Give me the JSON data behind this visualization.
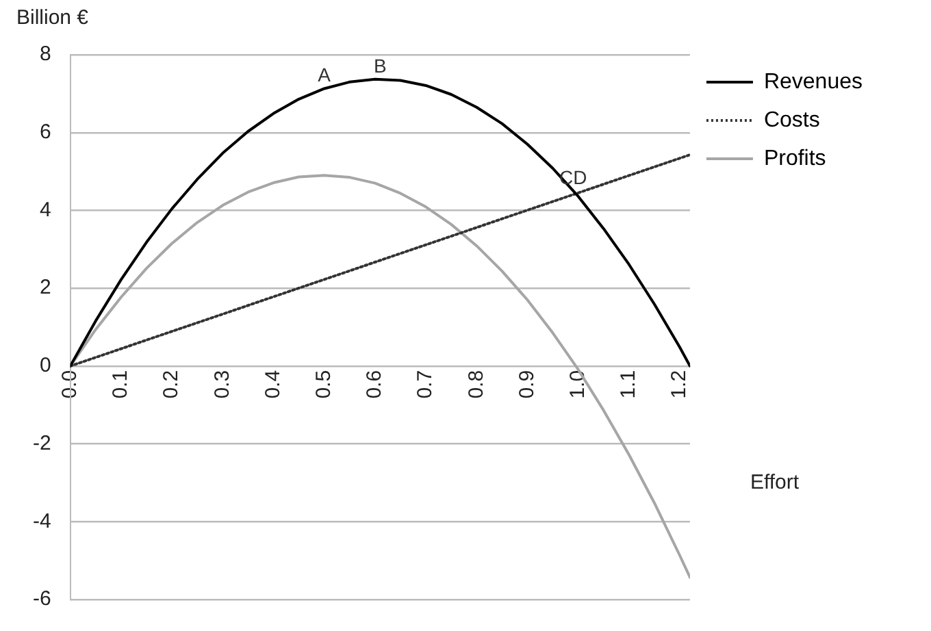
{
  "chart_data": {
    "type": "line",
    "ylabel": "Billion €",
    "xlabel": "Effort",
    "xlim": [
      0,
      1.22
    ],
    "xticks": [
      {
        "value": 0,
        "label": "0.0"
      },
      0.1,
      0.2,
      0.3,
      0.4,
      0.5,
      0.6,
      0.7,
      0.8,
      0.9,
      {
        "value": 1,
        "label": "1.0"
      },
      1.1,
      1.2
    ],
    "ylim": [
      -6,
      8
    ],
    "yticks": [
      -6,
      -4,
      -2,
      0,
      2,
      4,
      6,
      8
    ],
    "grid": "y",
    "legend": "right",
    "marker": "none",
    "series": [
      {
        "name": "Revenues",
        "color": "#000000",
        "line_style": "solid",
        "x": [
          0,
          0.05,
          0.1,
          0.15,
          0.2,
          0.25,
          0.3,
          0.35,
          0.4,
          0.45,
          0.5,
          0.55,
          0.6,
          0.65,
          0.7,
          0.75,
          0.8,
          0.85,
          0.9,
          0.95,
          1,
          1.05,
          1.1,
          1.15,
          1.2,
          1.22
        ],
        "values": [
          0,
          1.16,
          2.22,
          3.18,
          4.04,
          4.8,
          5.47,
          6.03,
          6.49,
          6.86,
          7.13,
          7.3,
          7.37,
          7.34,
          7.21,
          6.98,
          6.65,
          6.23,
          5.7,
          5.08,
          4.36,
          3.53,
          2.61,
          1.59,
          0.48,
          0
        ]
      },
      {
        "name": "Costs",
        "color": "#333333",
        "line_style": "dotted",
        "x": [
          0,
          1.22
        ],
        "values": [
          0,
          5.43
        ]
      },
      {
        "name": "Profits",
        "color": "#a6a6a6",
        "line_style": "solid",
        "x": [
          0,
          0.05,
          0.1,
          0.15,
          0.2,
          0.25,
          0.3,
          0.35,
          0.4,
          0.45,
          0.5,
          0.55,
          0.6,
          0.65,
          0.7,
          0.75,
          0.8,
          0.85,
          0.9,
          0.95,
          1,
          1.05,
          1.1,
          1.15,
          1.2,
          1.22
        ],
        "values": [
          0,
          0.94,
          1.77,
          2.51,
          3.15,
          3.69,
          4.13,
          4.47,
          4.71,
          4.86,
          4.9,
          4.85,
          4.7,
          4.44,
          4.09,
          3.64,
          3.09,
          2.44,
          1.7,
          0.85,
          -0.09,
          -1.14,
          -2.28,
          -3.52,
          -4.87,
          -5.43
        ]
      }
    ],
    "annotations": [
      {
        "text": "A",
        "x": 0.5,
        "y": 7.13
      },
      {
        "text": "B",
        "x": 0.61,
        "y": 7.37
      },
      {
        "text": "CD",
        "x": 0.99,
        "y": 4.5
      }
    ]
  }
}
